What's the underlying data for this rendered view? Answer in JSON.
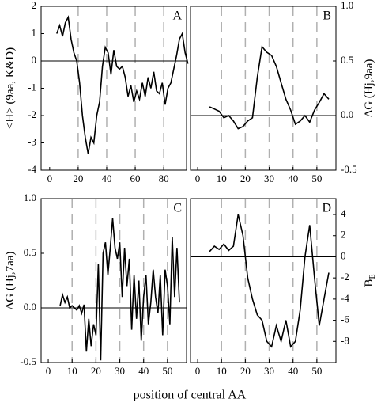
{
  "x_label": "position of central AA",
  "chart_data": [
    {
      "type": "line",
      "label": "A",
      "y_label": "<H> (9aa, K&D)",
      "color": "#000000",
      "x": [
        5,
        7,
        9,
        11,
        13,
        15,
        17,
        19,
        21,
        23,
        25,
        27,
        29,
        31,
        33,
        35,
        37,
        39,
        41,
        43,
        45,
        47,
        49,
        51,
        53,
        55,
        57,
        59,
        61,
        63,
        65,
        67,
        69,
        71,
        73,
        75,
        77,
        79,
        81,
        83,
        85,
        87,
        89,
        91,
        93,
        95,
        97
      ],
      "values": [
        1.0,
        1.3,
        0.9,
        1.4,
        1.6,
        0.8,
        0.3,
        0.0,
        -0.8,
        -2.0,
        -2.8,
        -3.4,
        -2.8,
        -3.0,
        -2.0,
        -1.5,
        -0.2,
        0.5,
        0.3,
        -0.5,
        0.4,
        -0.2,
        -0.3,
        -0.2,
        -0.6,
        -1.3,
        -0.9,
        -1.5,
        -1.1,
        -1.4,
        -0.8,
        -1.3,
        -0.6,
        -1.0,
        -0.4,
        -1.1,
        -1.2,
        -0.8,
        -1.6,
        -1.0,
        -0.8,
        -0.3,
        0.2,
        0.8,
        1.0,
        0.3,
        -0.1
      ],
      "xlim": [
        -6,
        96
      ],
      "xticks": [
        0,
        20,
        40,
        60,
        80
      ],
      "xgrid": [
        20,
        40,
        60,
        80
      ],
      "ylim": [
        -4,
        2
      ],
      "yticks": [
        -4,
        -3,
        -2,
        -1,
        0,
        1,
        2
      ],
      "y_axis_side": "left",
      "hline": 0
    },
    {
      "type": "line",
      "label": "B",
      "y_label": "ΔG (Hj,9aa)",
      "color": "#000000",
      "x": [
        5,
        7,
        9,
        11,
        13,
        15,
        17,
        19,
        21,
        23,
        25,
        27,
        29,
        31,
        33,
        35,
        37,
        39,
        41,
        43,
        45,
        47,
        49,
        51,
        53,
        55
      ],
      "values": [
        0.08,
        0.06,
        0.04,
        -0.02,
        0.0,
        -0.05,
        -0.12,
        -0.1,
        -0.05,
        -0.02,
        0.35,
        0.63,
        0.58,
        0.55,
        0.45,
        0.3,
        0.15,
        0.05,
        -0.08,
        -0.05,
        0.0,
        -0.06,
        0.05,
        0.12,
        0.2,
        0.15
      ],
      "xlim": [
        -3,
        58
      ],
      "xticks": [
        0,
        10,
        20,
        30,
        40,
        50
      ],
      "xgrid": [
        10,
        20,
        30,
        40,
        50
      ],
      "ylim": [
        -0.5,
        1.0
      ],
      "yticks": [
        {
          "value": -0.5,
          "label": "-0.5"
        },
        {
          "value": 0,
          "label": "0.0"
        },
        {
          "value": 0.5,
          "label": "0.5"
        },
        {
          "value": 1.0,
          "label": "1.0"
        }
      ],
      "y_axis_side": "right",
      "hline": 0
    },
    {
      "type": "line",
      "label": "C",
      "y_label": "ΔG (Hj,7aa)",
      "color": "#000000",
      "x": [
        5,
        6,
        7,
        8,
        9,
        10,
        11,
        12,
        13,
        14,
        15,
        16,
        17,
        18,
        19,
        20,
        21,
        22,
        23,
        24,
        25,
        26,
        27,
        28,
        29,
        30,
        31,
        32,
        33,
        34,
        35,
        36,
        37,
        38,
        39,
        40,
        41,
        42,
        43,
        44,
        45,
        46,
        47,
        48,
        49,
        50,
        51,
        52,
        53,
        54,
        55
      ],
      "values": [
        0.02,
        0.12,
        0.05,
        0.1,
        0.0,
        0.02,
        0.0,
        -0.02,
        0.02,
        -0.05,
        0.03,
        -0.4,
        -0.1,
        -0.35,
        -0.15,
        -0.25,
        0.4,
        -0.48,
        0.5,
        0.6,
        0.3,
        0.55,
        0.82,
        0.55,
        0.45,
        0.6,
        0.1,
        0.55,
        0.2,
        0.45,
        -0.2,
        0.3,
        -0.1,
        0.25,
        -0.3,
        0.1,
        0.3,
        -0.15,
        0.05,
        0.35,
        0.1,
        -0.05,
        0.3,
        -0.25,
        0.35,
        0.2,
        -0.15,
        0.65,
        0.1,
        0.55,
        0.05
      ],
      "xlim": [
        -3,
        58
      ],
      "xticks": [
        0,
        10,
        20,
        30,
        40,
        50
      ],
      "xgrid": [
        10,
        20,
        30,
        40,
        50
      ],
      "ylim": [
        -0.5,
        1.0
      ],
      "yticks": [
        {
          "value": -0.5,
          "label": "-0.5"
        },
        {
          "value": 0,
          "label": "0.0"
        },
        {
          "value": 0.5,
          "label": "0.5"
        },
        {
          "value": 1.0,
          "label": "1.0"
        }
      ],
      "y_axis_side": "left",
      "hline": 0
    },
    {
      "type": "line",
      "label": "D",
      "y_label": "B",
      "y_label_sub": "E",
      "color": "#000000",
      "x": [
        5,
        7,
        9,
        11,
        13,
        15,
        17,
        19,
        21,
        23,
        25,
        27,
        29,
        31,
        33,
        35,
        37,
        39,
        41,
        43,
        45,
        47,
        49,
        51,
        53,
        55
      ],
      "values": [
        0.5,
        1.0,
        0.7,
        1.2,
        0.6,
        1.0,
        4.0,
        2.0,
        -2.0,
        -4.0,
        -5.5,
        -6.0,
        -8.0,
        -8.5,
        -6.5,
        -8.0,
        -6.0,
        -8.5,
        -8.0,
        -5.0,
        0.0,
        3.0,
        -2.0,
        -6.5,
        -4.0,
        -1.5
      ],
      "xlim": [
        -3,
        58
      ],
      "xticks": [
        0,
        10,
        20,
        30,
        40,
        50
      ],
      "xgrid": [
        10,
        20,
        30,
        40,
        50
      ],
      "ylim": [
        -10,
        5.5
      ],
      "yticks": [
        -8,
        -6,
        -4,
        -2,
        0,
        2,
        4
      ],
      "y_axis_side": "right",
      "hline": 0
    }
  ]
}
